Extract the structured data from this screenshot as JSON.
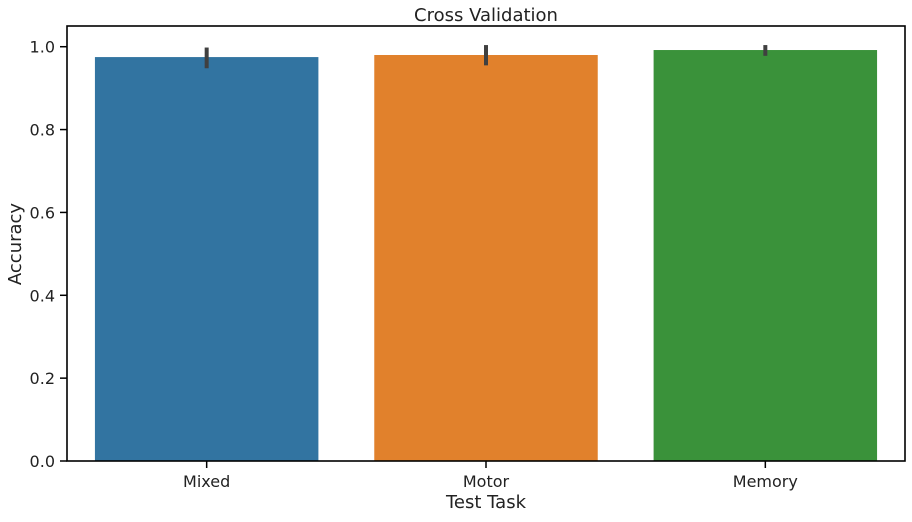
{
  "chart_data": {
    "type": "bar",
    "title": "Cross Validation",
    "xlabel": "Test Task",
    "ylabel": "Accuracy",
    "categories": [
      "Mixed",
      "Motor",
      "Memory"
    ],
    "values": [
      0.975,
      0.98,
      0.992
    ],
    "error_bars": [
      {
        "low": 0.948,
        "high": 0.998
      },
      {
        "low": 0.955,
        "high": 1.004
      },
      {
        "low": 0.978,
        "high": 1.004
      }
    ],
    "ylim": [
      0,
      1.05
    ],
    "yticks": [
      "0.0",
      "0.2",
      "0.4",
      "0.6",
      "0.8",
      "1.0"
    ],
    "ytick_values": [
      0,
      0.2,
      0.4,
      0.6,
      0.8,
      1.0
    ],
    "grid": false,
    "legend": "none",
    "colors": [
      "#3274a1",
      "#e1812c",
      "#3a923a"
    ],
    "error_color": "#404040"
  }
}
